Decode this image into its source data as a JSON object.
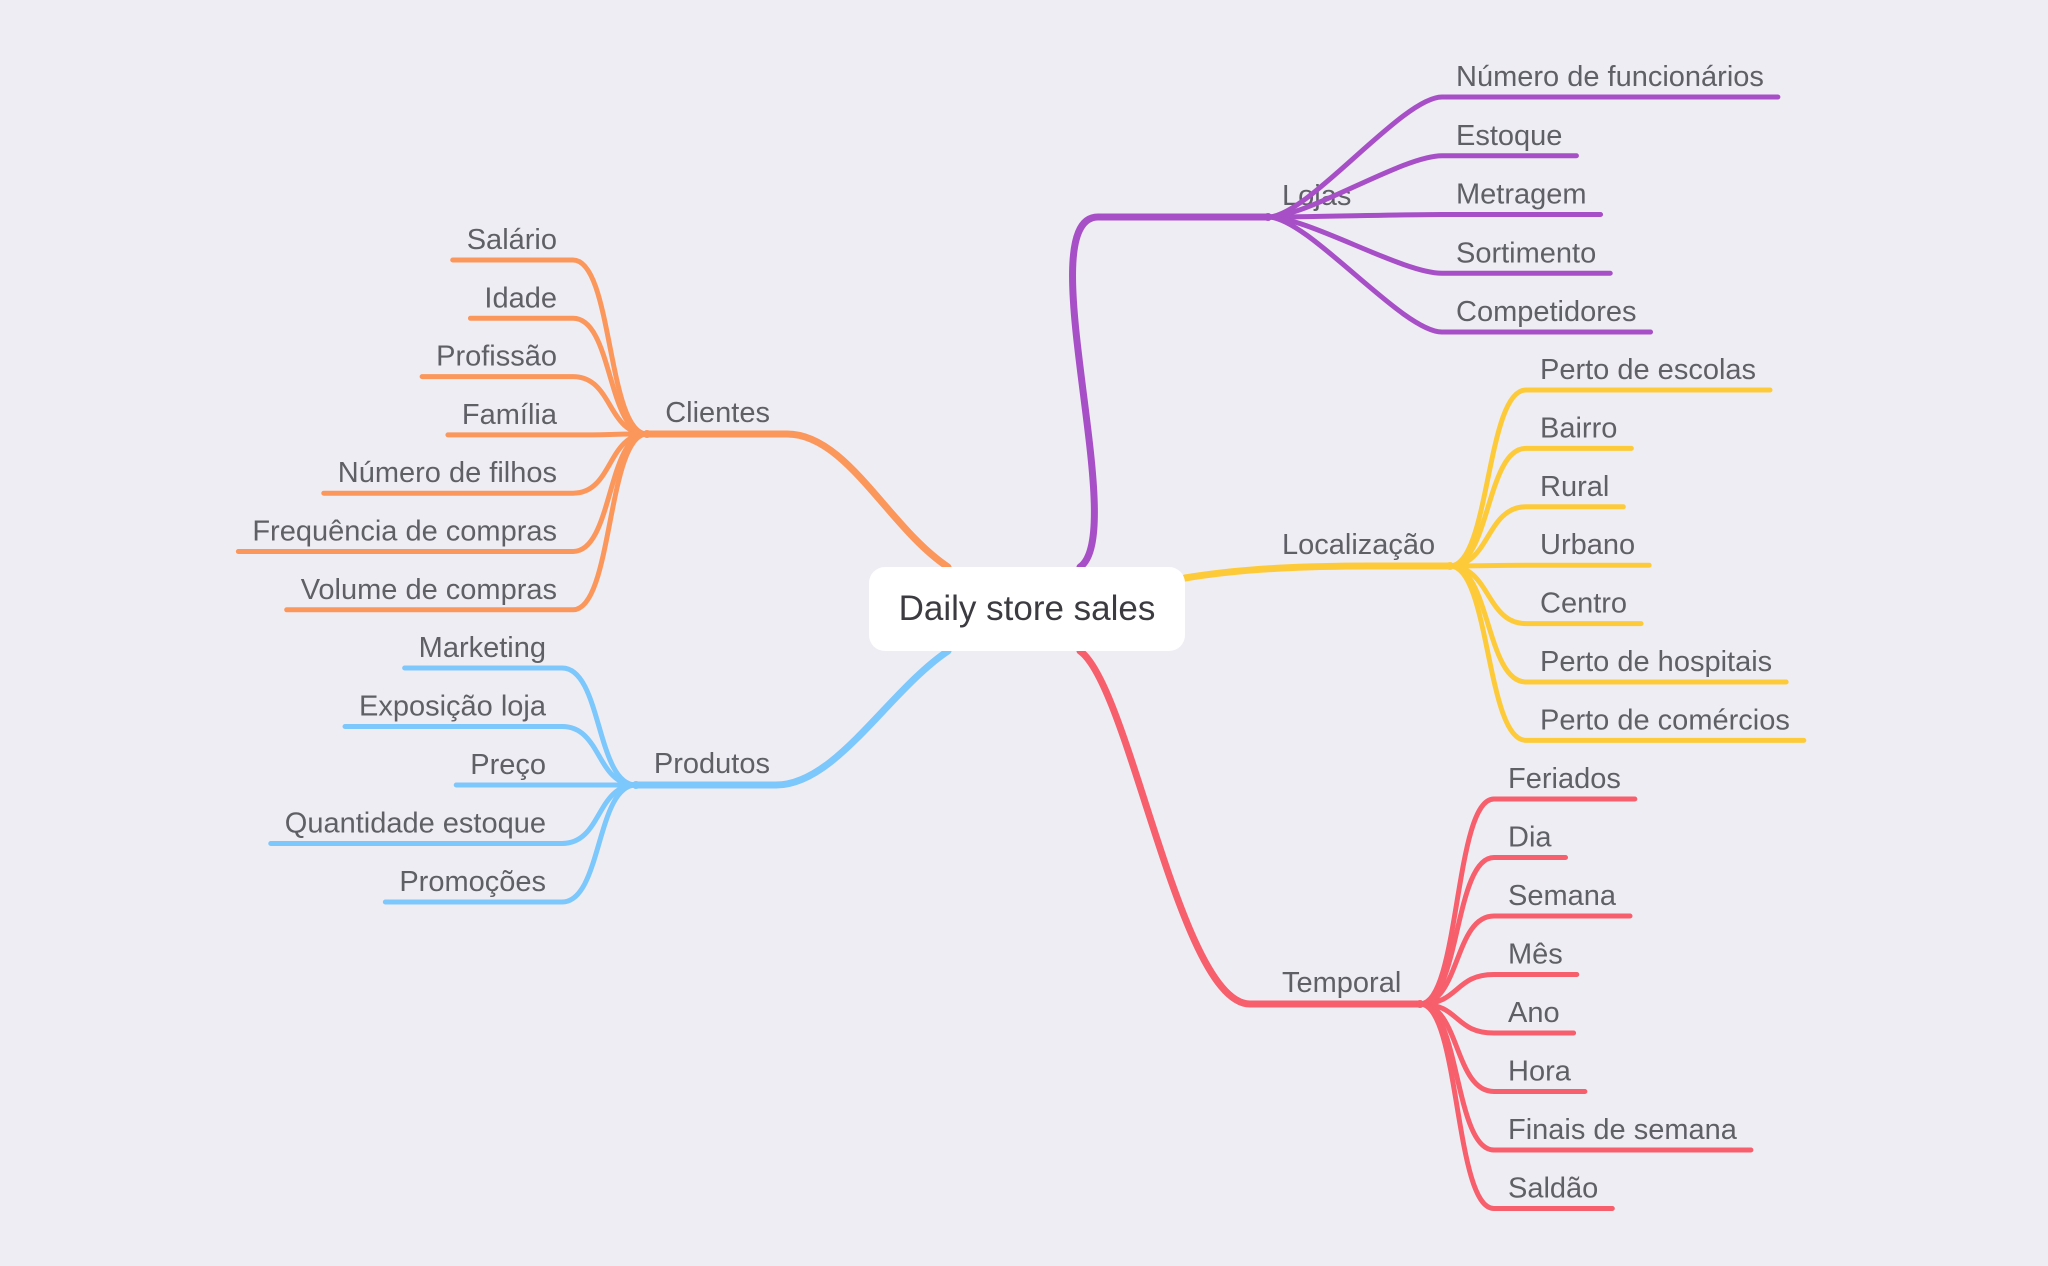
{
  "root": {
    "label": "Daily store sales"
  },
  "branches": [
    {
      "key": "lojas",
      "label": "Lojas",
      "color": "#a74fc6",
      "children": [
        "Número de funcionários",
        "Estoque",
        "Metragem",
        "Sortimento",
        "Competidores"
      ]
    },
    {
      "key": "localizacao",
      "label": "Localização",
      "color": "#fdcb3a",
      "children": [
        "Perto de escolas",
        "Bairro",
        "Rural",
        "Urbano",
        "Centro",
        "Perto de hospitais",
        "Perto de comércios"
      ]
    },
    {
      "key": "temporal",
      "label": "Temporal",
      "color": "#f65f6b",
      "children": [
        "Feriados",
        "Dia",
        "Semana",
        "Mês",
        "Ano",
        "Hora",
        "Finais de semana",
        "Saldão"
      ]
    },
    {
      "key": "clientes",
      "label": "Clientes",
      "color": "#fb975b",
      "children": [
        "Salário",
        "Idade",
        "Profissão",
        "Família",
        "Número de filhos",
        "Frequência de compras",
        "Volume de compras"
      ]
    },
    {
      "key": "produtos",
      "label": "Produtos",
      "color": "#7cc7fb",
      "children": [
        "Marketing",
        "Exposição loja",
        "Preço",
        "Quantidade estoque",
        "Promoções"
      ]
    }
  ]
}
